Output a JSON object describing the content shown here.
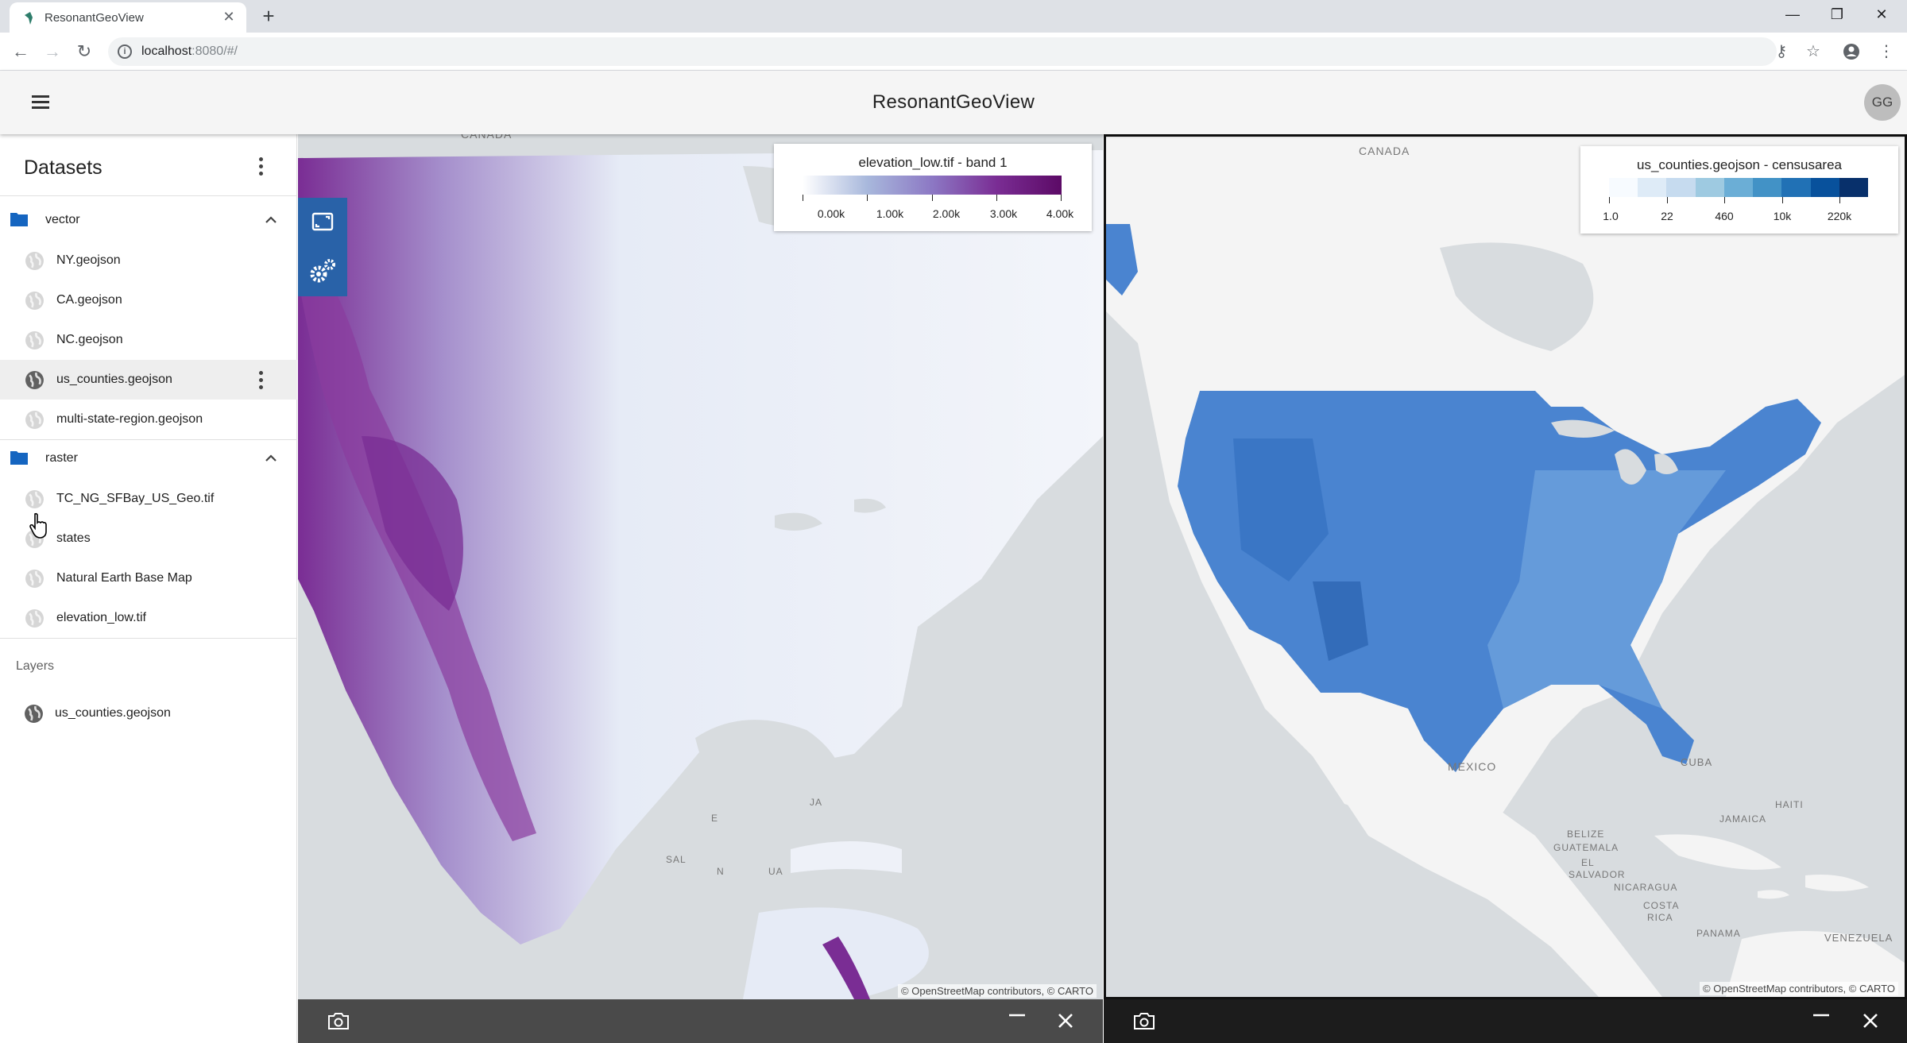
{
  "browser": {
    "tab_title": "ResonantGeoView",
    "url_host": "localhost",
    "url_path": ":8080/#/"
  },
  "app": {
    "title": "ResonantGeoView",
    "user_initials": "GG"
  },
  "sidebar": {
    "datasets_title": "Datasets",
    "groups": [
      {
        "name": "vector",
        "items": [
          "NY.geojson",
          "CA.geojson",
          "NC.geojson",
          "us_counties.geojson",
          "multi-state-region.geojson"
        ]
      },
      {
        "name": "raster",
        "items": [
          "TC_NG_SFBay_US_Geo.tif",
          "states",
          "Natural Earth Base Map",
          "elevation_low.tif"
        ]
      }
    ],
    "layers_title": "Layers",
    "layers": [
      "us_counties.geojson"
    ]
  },
  "map_left": {
    "legend_title": "elevation_low.tif - band 1",
    "legend_ticks": [
      "0.00k",
      "1.00k",
      "2.00k",
      "3.00k",
      "4.00k"
    ],
    "legend_colors": [
      "#ffffff",
      "#a8b8dc",
      "#8c78c4",
      "#7a2d94",
      "#5c0a66"
    ],
    "labels": {
      "canada": "CANADA",
      "ja": "JA",
      "sal": "SAL",
      "nica": "N",
      "ua": "UA",
      "e": "E"
    },
    "attribution": "© OpenStreetMap contributors, © CARTO"
  },
  "map_right": {
    "legend_title": "us_counties.geojson - censusarea",
    "legend_ticks": [
      "1.0",
      "22",
      "460",
      "10k",
      "220k"
    ],
    "legend_colors": [
      "#f7fbff",
      "#deebf7",
      "#c6dbef",
      "#9ecae1",
      "#6baed6",
      "#4292c6",
      "#2171b5",
      "#08519c",
      "#08306b"
    ],
    "labels": {
      "canada": "CANADA",
      "mexico": "MEXICO",
      "cuba": "CUBA",
      "belize": "BELIZE",
      "guatemala": "GUATEMALA",
      "haiti": "HAITI",
      "jamaica": "JAMAICA",
      "el_salvador_1": "EL",
      "el_salvador_2": "SALVADOR",
      "nicaragua": "NICARAGUA",
      "costa_rica_1": "COSTA",
      "costa_rica_2": "RICA",
      "panama": "PANAMA",
      "venezuela": "VENEZUELA"
    },
    "attribution": "© OpenStreetMap contributors, © CARTO"
  },
  "colors": {
    "accent": "#2962a8",
    "folder": "#1565c0",
    "county_fill": "#4a84d0"
  }
}
